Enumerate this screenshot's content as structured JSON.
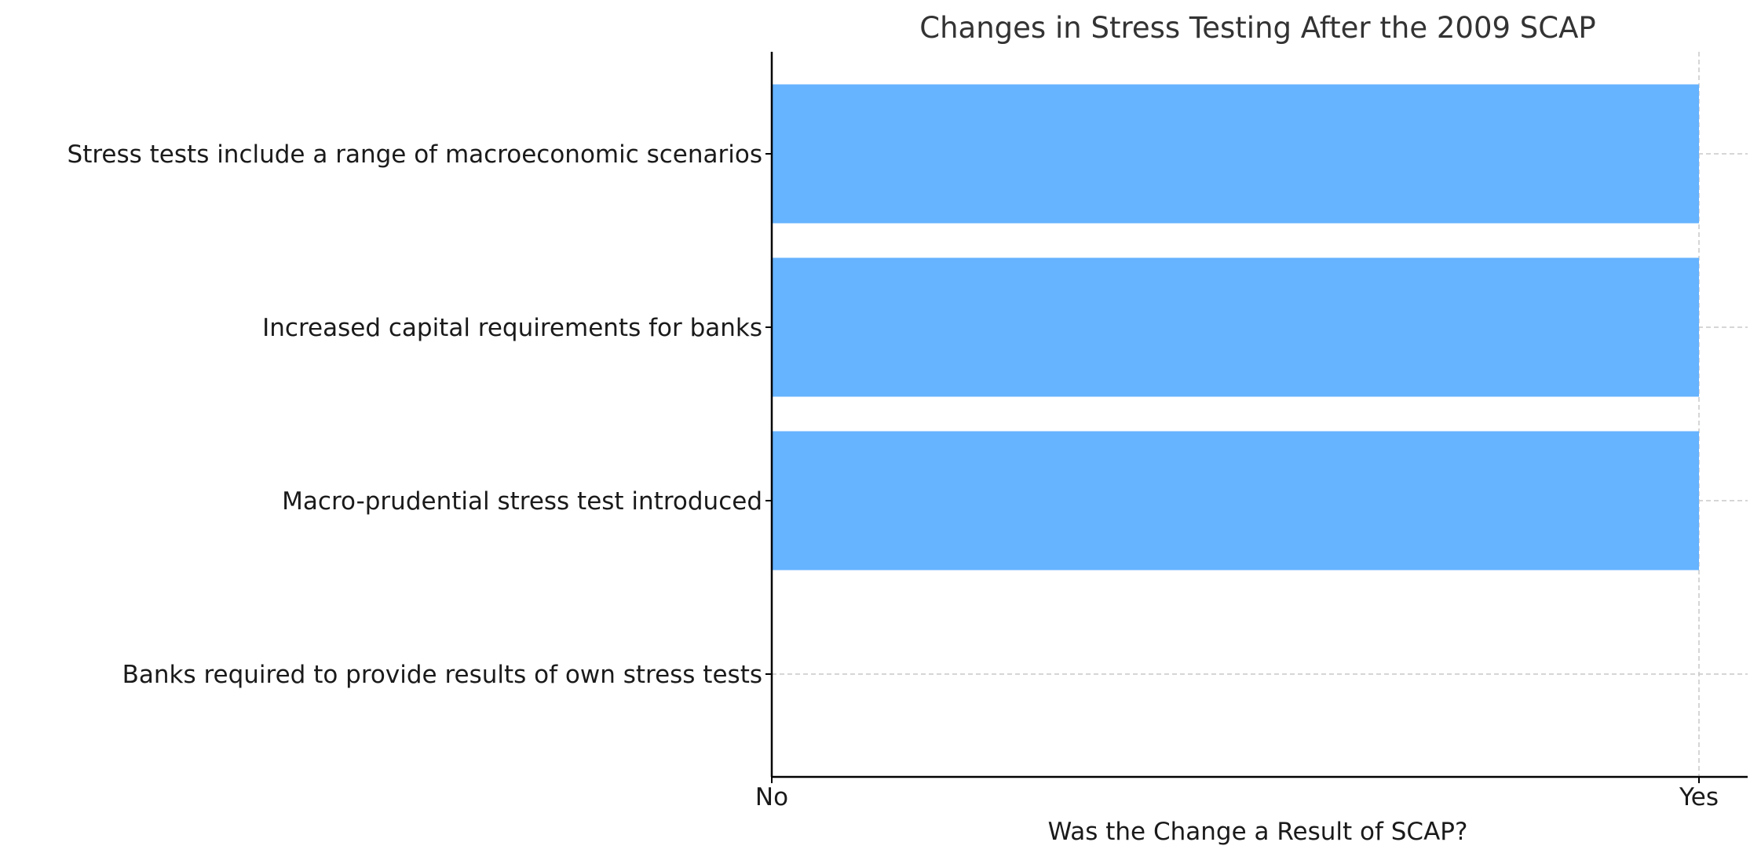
{
  "chart_data": {
    "type": "bar",
    "orientation": "horizontal",
    "title": "Changes in Stress Testing After the 2009 SCAP",
    "xlabel": "Was the Change a Result of SCAP?",
    "ylabel": "",
    "categories": [
      "Stress tests include a range of macroeconomic scenarios",
      "Increased capital requirements for banks",
      "Macro-prudential stress test introduced",
      "Banks required to provide results of own stress tests"
    ],
    "values": [
      1,
      1,
      1,
      0
    ],
    "xlim": [
      0,
      1
    ],
    "x_ticks": [
      {
        "value": 0,
        "label": "No"
      },
      {
        "value": 1,
        "label": "Yes"
      }
    ],
    "grid": true,
    "grid_style": "dashed",
    "bar_color": "#66b3ff",
    "axis_color": "#000000",
    "grid_color": "#c8c8c8",
    "text_color": "#1a1a1a",
    "title_color": "#333333"
  }
}
